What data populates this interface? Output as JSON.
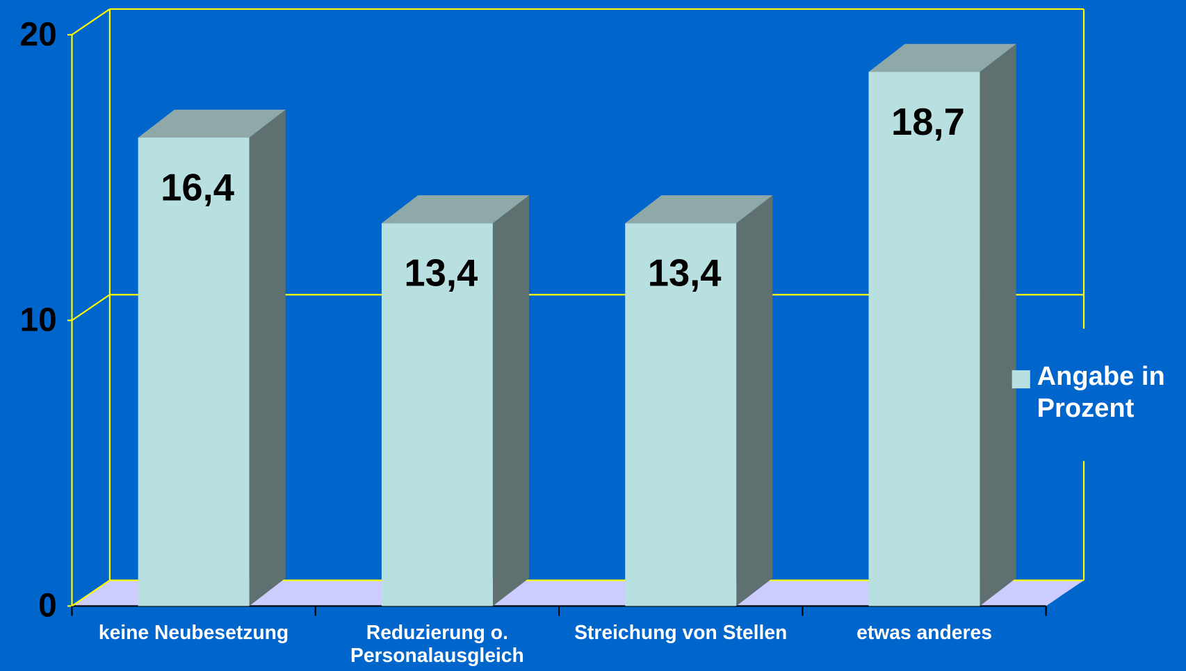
{
  "chart_data": {
    "type": "bar",
    "categories": [
      "keine Neubesetzung",
      "Reduzierung o. Personalausgleich",
      "Streichung von Stellen",
      "etwas anderes"
    ],
    "series": [
      {
        "name": "Angabe in Prozent",
        "color": "#b9e0e0",
        "values": [
          16.4,
          13.4,
          13.4,
          18.7
        ],
        "value_labels": [
          "16,4",
          "13,4",
          "13,4",
          "18,7"
        ]
      }
    ],
    "ylim": [
      0,
      20
    ],
    "yticks": [
      0,
      10,
      20
    ],
    "grid": true,
    "legend": "right"
  }
}
